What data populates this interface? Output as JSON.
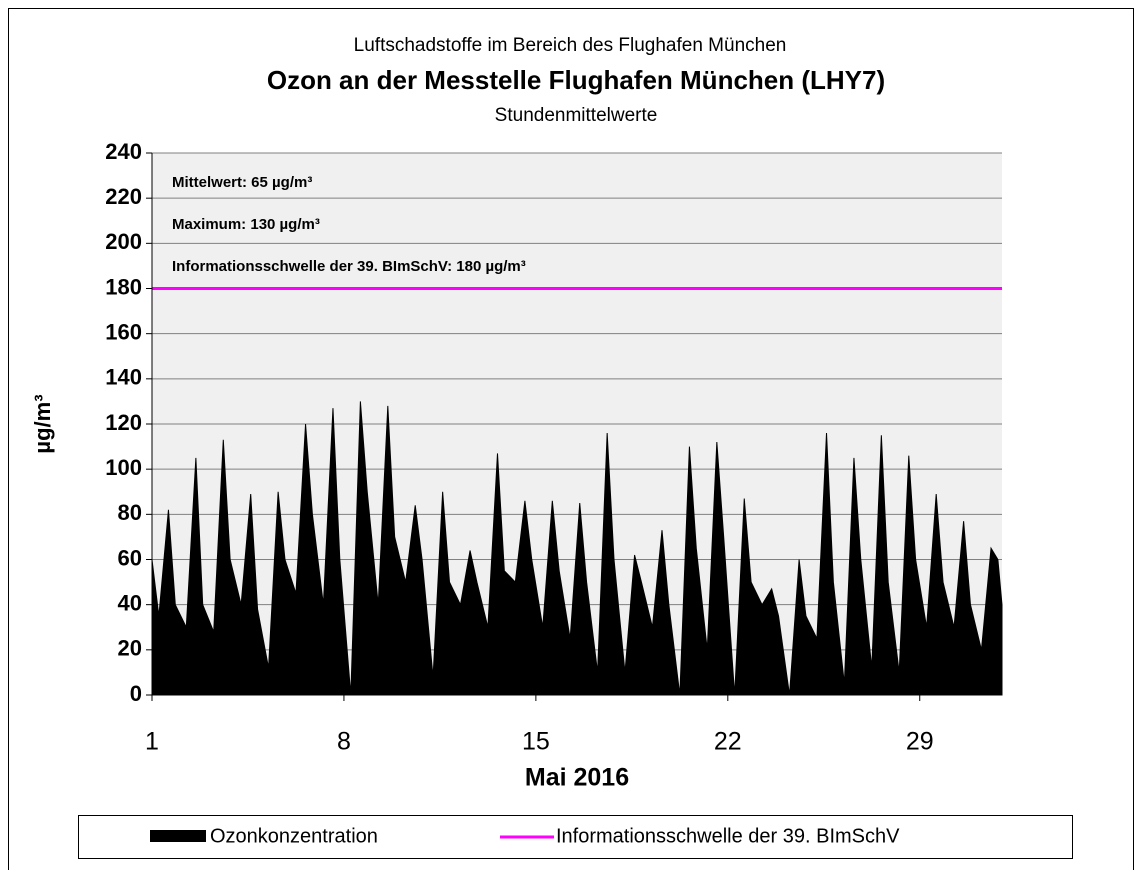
{
  "chart_data": {
    "type": "area",
    "supertitle": "Luftschadstoffe im Bereich des Flughafen München",
    "title": "Ozon an der Messtelle Flughafen München (LHY7)",
    "subtitle": "Stundenmittelwerte",
    "ylabel": "µg/m³",
    "xlabel": "Mai 2016",
    "xlim": [
      1,
      32
    ],
    "xticks": [
      1,
      8,
      15,
      22,
      29
    ],
    "ylim": [
      0,
      240
    ],
    "yticks": [
      0,
      20,
      40,
      60,
      80,
      100,
      120,
      140,
      160,
      180,
      200,
      220,
      240
    ],
    "grid": true,
    "series": [
      {
        "name": "Ozonkonzentration",
        "color": "#000000",
        "x": [
          1,
          1.25,
          1.6,
          1.85,
          2.25,
          2.6,
          2.85,
          3.25,
          3.6,
          3.85,
          4.25,
          4.6,
          4.85,
          5.25,
          5.6,
          5.85,
          6.25,
          6.6,
          6.85,
          7.25,
          7.6,
          7.85,
          8.25,
          8.6,
          8.85,
          9.25,
          9.6,
          9.85,
          10.25,
          10.6,
          10.85,
          11.25,
          11.6,
          11.85,
          12.25,
          12.6,
          12.85,
          13.25,
          13.6,
          13.85,
          14.25,
          14.6,
          14.85,
          15.25,
          15.6,
          15.85,
          16.25,
          16.6,
          16.85,
          17.25,
          17.6,
          17.85,
          18.25,
          18.6,
          18.85,
          19.25,
          19.6,
          19.85,
          20.25,
          20.6,
          20.85,
          21.25,
          21.6,
          21.85,
          22.25,
          22.6,
          22.85,
          23.25,
          23.6,
          23.85,
          24.25,
          24.6,
          24.85,
          25.25,
          25.6,
          25.85,
          26.25,
          26.6,
          26.85,
          27.25,
          27.6,
          27.85,
          28.25,
          28.6,
          28.85,
          29.25,
          29.6,
          29.85,
          30.25,
          30.6,
          30.85,
          31.25,
          31.6,
          31.85,
          32
        ],
        "values": [
          60,
          35,
          82,
          40,
          30,
          105,
          40,
          28,
          113,
          60,
          40,
          89,
          38,
          12,
          90,
          60,
          45,
          120,
          80,
          40,
          127,
          60,
          0,
          130,
          90,
          40,
          128,
          70,
          50,
          84,
          60,
          8,
          90,
          50,
          40,
          64,
          50,
          30,
          107,
          55,
          50,
          86,
          60,
          30,
          86,
          55,
          25,
          85,
          50,
          10,
          116,
          60,
          10,
          62,
          50,
          30,
          73,
          40,
          0,
          110,
          65,
          20,
          112,
          70,
          0,
          87,
          50,
          40,
          47,
          35,
          0,
          60,
          35,
          25,
          116,
          50,
          5,
          105,
          60,
          12,
          115,
          50,
          10,
          106,
          60,
          30,
          89,
          50,
          30,
          77,
          40,
          20,
          65,
          60,
          40
        ]
      }
    ],
    "threshold": {
      "name": "Informationsschwelle der 39. BImSchV",
      "value": 180,
      "color": "#ff00ff"
    },
    "annotations": [
      "Mittelwert: 65 µg/m³",
      "Maximum: 130 µg/m³",
      "Informationsschwelle der 39. BImSchV: 180 µg/m³"
    ]
  }
}
